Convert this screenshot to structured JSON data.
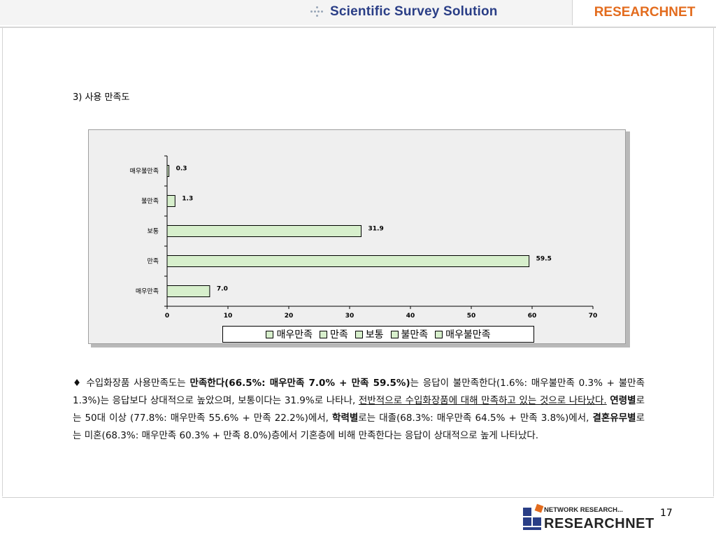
{
  "header": {
    "tagline": "Scientific Survey Solution",
    "brand": "RESEARCHNET"
  },
  "section_title": "3) 사용 만족도",
  "chart_data": {
    "type": "bar",
    "orientation": "horizontal",
    "categories": [
      "매우불만족",
      "불만족",
      "보통",
      "만족",
      "매우만족"
    ],
    "values": [
      0.3,
      1.3,
      31.9,
      59.5,
      7.0
    ],
    "value_labels": [
      "0.3",
      "1.3",
      "31.9",
      "59.5",
      "7.0"
    ],
    "xlim": [
      0,
      70
    ],
    "x_ticks": [
      "0",
      "10",
      "20",
      "30",
      "40",
      "50",
      "60",
      "70"
    ],
    "legend": [
      "매우만족",
      "만족",
      "보통",
      "불만족",
      "매우불만족"
    ],
    "legend_placement": "bottom",
    "bar_color": "#d7efcc",
    "grid": false
  },
  "paragraph": {
    "bullet": "♦",
    "s1": " 수입화장품 사용만족도는 ",
    "b1": "만족한다(66.5%: 매우만족 7.0% + 만족 59.5%)",
    "s2": "는 응답이 불만족한다(1.6%: 매우불만족 0.3% + 불만족 1.3%)는 응답보다 상대적으로 높았으며, 보통이다는 31.9%로 나타나, ",
    "u1": "전반적으로 수입화장품에 대해 만족하고 있는 것으로 나타났다.",
    "s3": " ",
    "b2": "연령별",
    "s4": "로는 50대 이상 (77.8%: 매우만족 55.6% + 만족 22.2%)에서, ",
    "b3": "학력별",
    "s5": "로는 대졸(68.3%: 매우만족 64.5% + 만족 3.8%)에서, ",
    "b4": "결혼유무별",
    "s6": "로는 미혼(68.3%: 매우만족 60.3% + 만족 8.0%)층에서 기혼층에 비해 만족한다는 응답이 상대적으로 높게 나타났다."
  },
  "footer": {
    "logo_small": "NETWORK RESEARCH...",
    "logo_big": "RESEARCHNET",
    "page_number": "17"
  }
}
